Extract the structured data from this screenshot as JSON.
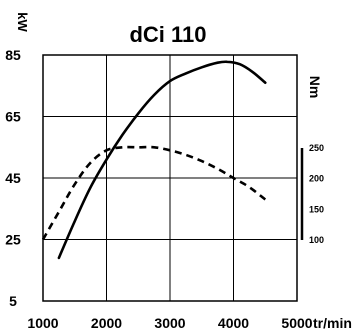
{
  "chart_data": {
    "type": "line",
    "title": "dCi 110",
    "ylabel": "kW",
    "y2label": "Nm",
    "xunit": "tr/min",
    "xlim": [
      1000,
      5000
    ],
    "ylim": [
      5,
      85
    ],
    "y2lim": [
      100,
      250
    ],
    "x_ticks": [
      "1000",
      "2000",
      "3000",
      "4000",
      "5000"
    ],
    "y_ticks": [
      "5",
      "25",
      "45",
      "65",
      "85"
    ],
    "y2_ticks": [
      "250",
      "200",
      "150",
      "100"
    ],
    "grid": true,
    "series": [
      {
        "axis": "left",
        "style": "solid",
        "x": [
          1250,
          1500,
          1750,
          2000,
          2250,
          2500,
          2750,
          3000,
          3250,
          3500,
          3750,
          3900,
          4100,
          4300,
          4500
        ],
        "y": [
          19,
          31,
          42,
          51,
          59,
          66,
          72,
          76.5,
          79,
          81,
          82.5,
          82.8,
          82,
          79.5,
          76
        ]
      },
      {
        "axis": "left",
        "style": "dashed",
        "x": [
          1000,
          1250,
          1500,
          1750,
          2000,
          2250,
          2500,
          2750,
          3000,
          3250,
          3500,
          3750,
          4000,
          4250,
          4500
        ],
        "y": [
          25,
          34,
          43,
          50,
          54,
          55,
          55,
          55,
          54,
          52.5,
          50.5,
          48,
          45,
          42,
          38
        ]
      }
    ]
  }
}
